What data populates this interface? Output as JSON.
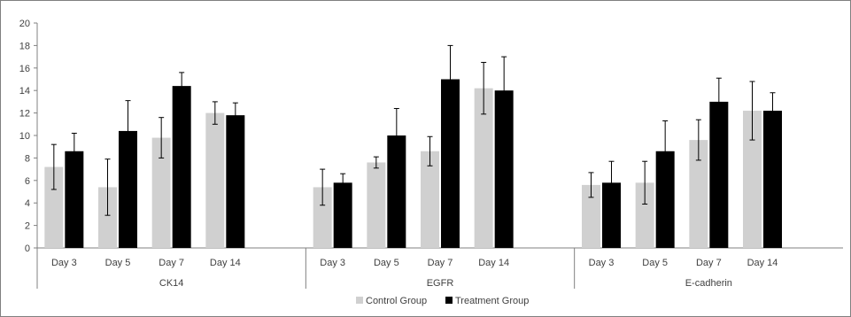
{
  "chart_data": {
    "type": "bar",
    "title": "",
    "xlabel": "",
    "ylabel": "",
    "ylim": [
      0,
      20
    ],
    "yticks": [
      0,
      2,
      4,
      6,
      8,
      10,
      12,
      14,
      16,
      18,
      20
    ],
    "grid": false,
    "legend_position": "bottom",
    "groups": [
      {
        "name": "CK14",
        "categories": [
          "Day 3",
          "Day 5",
          "Day  7",
          "Day 14"
        ],
        "series": [
          {
            "name": "Control Group",
            "values": [
              7.2,
              5.4,
              9.8,
              12.0
            ],
            "errors": [
              2.0,
              2.5,
              1.8,
              1.0
            ]
          },
          {
            "name": "Treatment Group",
            "values": [
              8.6,
              10.4,
              14.4,
              11.8
            ],
            "errors": [
              1.6,
              2.7,
              1.2,
              1.1
            ]
          }
        ]
      },
      {
        "name": "EGFR",
        "categories": [
          "Day 3",
          "Day 5",
          "Day  7",
          "Day 14"
        ],
        "series": [
          {
            "name": "Control Group",
            "values": [
              5.4,
              7.6,
              8.6,
              14.2
            ],
            "errors": [
              1.6,
              0.5,
              1.3,
              2.3
            ]
          },
          {
            "name": "Treatment Group",
            "values": [
              5.8,
              10.0,
              15.0,
              14.0
            ],
            "errors": [
              0.8,
              2.4,
              3.0,
              3.0
            ]
          }
        ]
      },
      {
        "name": "E-cadherin",
        "categories": [
          "Day 3",
          "Day 5",
          "Day  7",
          "Day 14"
        ],
        "series": [
          {
            "name": "Control Group",
            "values": [
              5.6,
              5.8,
              9.6,
              12.2
            ],
            "errors": [
              1.1,
              1.9,
              1.8,
              2.6
            ]
          },
          {
            "name": "Treatment Group",
            "values": [
              5.8,
              8.6,
              13.0,
              12.2
            ],
            "errors": [
              1.9,
              2.7,
              2.1,
              1.6
            ]
          }
        ]
      }
    ],
    "legend": [
      {
        "name": "Control Group",
        "color": "#d0d0d0"
      },
      {
        "name": "Treatment Group",
        "color": "#000000"
      }
    ]
  }
}
